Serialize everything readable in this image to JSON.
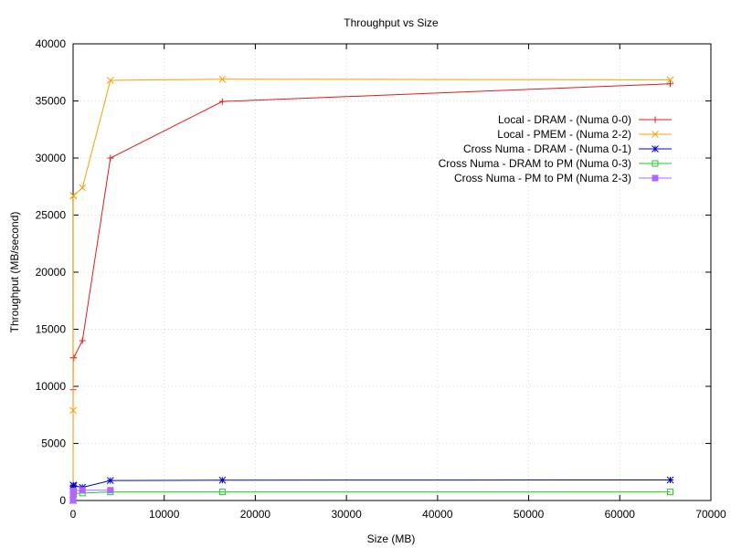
{
  "chart_data": {
    "type": "line",
    "title": "Throughput vs Size",
    "xlabel": "Size (MB)",
    "ylabel": "Throughput (MB/second)",
    "xlim": [
      0,
      70000
    ],
    "ylim": [
      0,
      40000
    ],
    "xticks": [
      0,
      10000,
      20000,
      30000,
      40000,
      50000,
      60000,
      70000
    ],
    "yticks": [
      0,
      5000,
      10000,
      15000,
      20000,
      25000,
      30000,
      35000,
      40000
    ],
    "grid": true,
    "legend_position": "top-right",
    "series": [
      {
        "name": "Local - DRAM - (Numa 0-0)",
        "color": "#e41a1c",
        "marker": "plus",
        "points": [
          [
            1,
            0
          ],
          [
            4,
            9700
          ],
          [
            16,
            12500
          ],
          [
            64,
            12500
          ],
          [
            1024,
            14000
          ],
          [
            4096,
            30000
          ],
          [
            16384,
            34950
          ],
          [
            65536,
            36500
          ]
        ]
      },
      {
        "name": "Local - PMEM - (Numa 2-2)",
        "color": "#f0a30a",
        "marker": "x",
        "points": [
          [
            1,
            0
          ],
          [
            4,
            7900
          ],
          [
            16,
            26700
          ],
          [
            64,
            26700
          ],
          [
            1024,
            27400
          ],
          [
            4096,
            36800
          ],
          [
            16384,
            36900
          ],
          [
            65536,
            36850
          ]
        ]
      },
      {
        "name": "Cross Numa - DRAM - (Numa 0-1)",
        "color": "#0000cc",
        "marker": "star",
        "points": [
          [
            1,
            0
          ],
          [
            4,
            1000
          ],
          [
            16,
            1350
          ],
          [
            64,
            1300
          ],
          [
            1024,
            1150
          ],
          [
            4096,
            1750
          ],
          [
            16384,
            1780
          ],
          [
            65536,
            1800
          ]
        ]
      },
      {
        "name": "Cross Numa - DRAM to PM (Numa 0-3)",
        "color": "#22cc22",
        "marker": "square-open",
        "points": [
          [
            1,
            0
          ],
          [
            4,
            400
          ],
          [
            16,
            550
          ],
          [
            64,
            600
          ],
          [
            1024,
            650
          ],
          [
            4096,
            750
          ],
          [
            16384,
            750
          ],
          [
            65536,
            750
          ]
        ]
      },
      {
        "name": "Cross Numa - PM to PM (Numa 2-3)",
        "color": "#b266ff",
        "marker": "square-filled",
        "points": [
          [
            1,
            0
          ],
          [
            4,
            500
          ],
          [
            16,
            800
          ],
          [
            64,
            850
          ],
          [
            1024,
            900
          ],
          [
            4096,
            900
          ]
        ]
      }
    ]
  }
}
